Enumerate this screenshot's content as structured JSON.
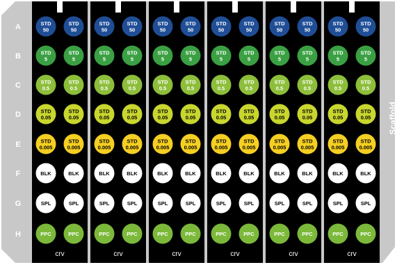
{
  "plate": {
    "rows": [
      "A",
      "B",
      "C",
      "D",
      "E",
      "F",
      "G",
      "H"
    ],
    "side_label": "Scaffold",
    "strip_label": "crv",
    "strip_count": 6,
    "wells_per_row_per_strip": 2,
    "row_contents": [
      {
        "row": "A",
        "line1": "STD",
        "line2": "50",
        "fill": "#1f4e96",
        "text_color": "#ffffff"
      },
      {
        "row": "B",
        "line1": "STD",
        "line2": "5",
        "fill": "#3aa043",
        "text_color": "#ffffff"
      },
      {
        "row": "C",
        "line1": "STD",
        "line2": "0.5",
        "fill": "#8dbe3a",
        "text_color": "#ffffff"
      },
      {
        "row": "D",
        "line1": "STD",
        "line2": "0.05",
        "fill": "#c8d62e",
        "text_color": "#000000"
      },
      {
        "row": "E",
        "line1": "STD",
        "line2": "0.005",
        "fill": "#f5cf22",
        "text_color": "#000000"
      },
      {
        "row": "F",
        "line1": "BLK",
        "line2": "",
        "fill": "#ffffff",
        "text_color": "#000000"
      },
      {
        "row": "G",
        "line1": "SPL",
        "line2": "",
        "fill": "#ffffff",
        "text_color": "#000000"
      },
      {
        "row": "H",
        "line1": "PPC",
        "line2": "",
        "fill": "#7cb93b",
        "text_color": "#ffffff"
      }
    ],
    "colors": {
      "frame": "#c8c8c8",
      "strip": "#000000",
      "label_text": "#ffffff"
    }
  }
}
